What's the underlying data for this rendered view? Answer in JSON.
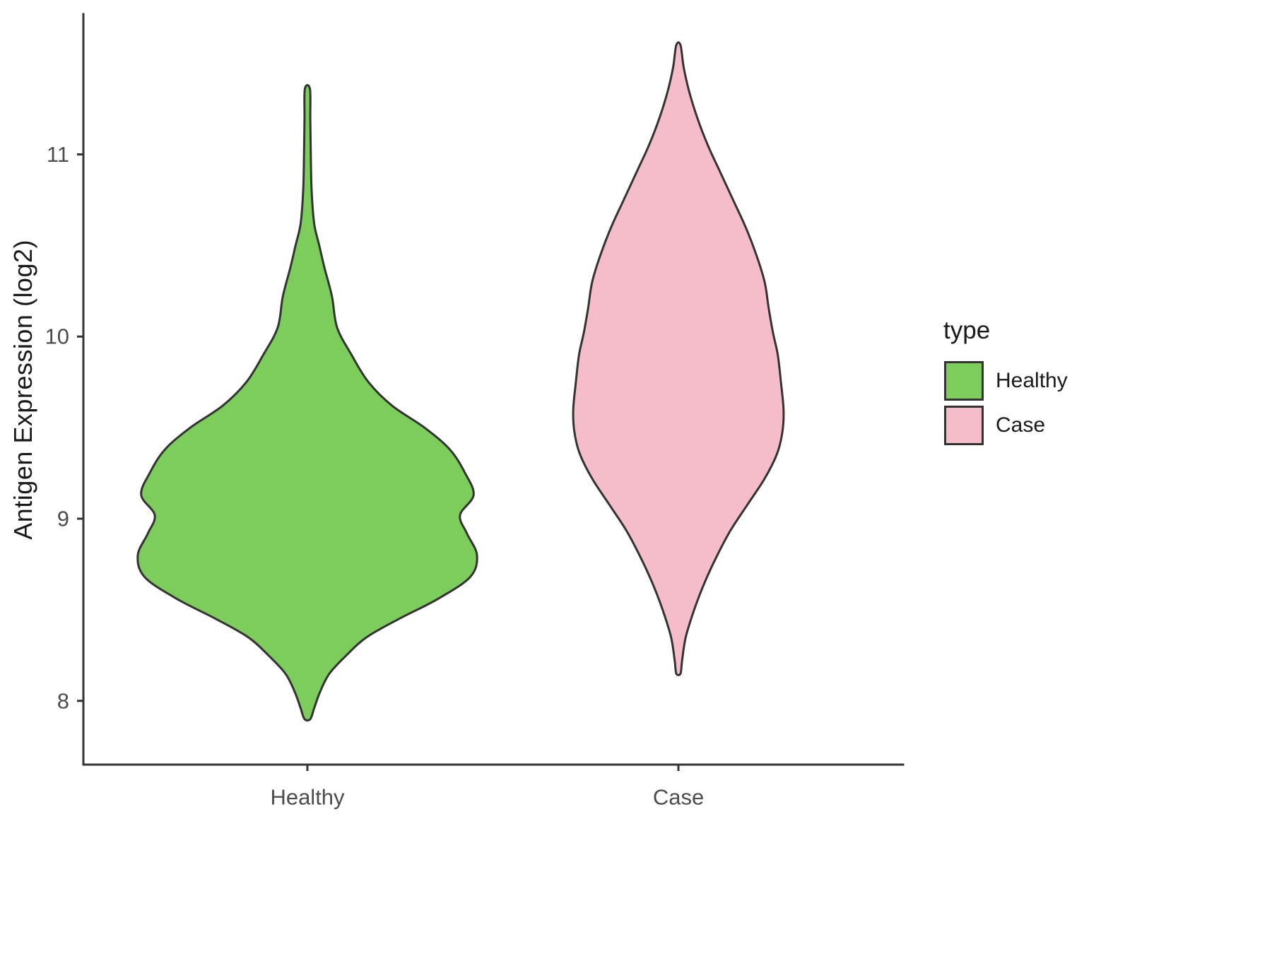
{
  "chart_data": {
    "type": "violin",
    "title": "",
    "xlabel": "",
    "ylabel": "Antigen Expression (log2)",
    "categories": [
      "Healthy",
      "Case"
    ],
    "y_ticks": [
      8,
      9,
      10,
      11
    ],
    "ylim": [
      7.65,
      11.77
    ],
    "grid": "off",
    "legend": {
      "title": "type",
      "position": "right",
      "entries": [
        {
          "label": "Healthy",
          "color": "#7CCD5B"
        },
        {
          "label": "Case",
          "color": "#F5BDCA"
        }
      ]
    },
    "series": [
      {
        "name": "Healthy",
        "fill": "#7CCD5B",
        "outline": "#333333",
        "max_width": 1.0,
        "y_min": 7.9,
        "y_max": 11.36,
        "profile": [
          [
            11.36,
            0.015
          ],
          [
            11.2,
            0.017
          ],
          [
            11.0,
            0.02
          ],
          [
            10.8,
            0.025
          ],
          [
            10.62,
            0.04
          ],
          [
            10.5,
            0.07
          ],
          [
            10.38,
            0.1
          ],
          [
            10.22,
            0.145
          ],
          [
            10.05,
            0.175
          ],
          [
            9.9,
            0.26
          ],
          [
            9.75,
            0.36
          ],
          [
            9.62,
            0.5
          ],
          [
            9.5,
            0.69
          ],
          [
            9.38,
            0.84
          ],
          [
            9.25,
            0.93
          ],
          [
            9.13,
            0.98
          ],
          [
            9.02,
            0.9
          ],
          [
            8.92,
            0.94
          ],
          [
            8.8,
            1.0
          ],
          [
            8.68,
            0.96
          ],
          [
            8.56,
            0.77
          ],
          [
            8.45,
            0.54
          ],
          [
            8.35,
            0.35
          ],
          [
            8.25,
            0.23
          ],
          [
            8.15,
            0.13
          ],
          [
            8.05,
            0.075
          ],
          [
            7.96,
            0.04
          ],
          [
            7.9,
            0.017
          ]
        ]
      },
      {
        "name": "Case",
        "fill": "#F5BDCA",
        "outline": "#333333",
        "max_width": 0.62,
        "y_min": 8.15,
        "y_max": 11.6,
        "profile": [
          [
            11.6,
            0.02
          ],
          [
            11.48,
            0.05
          ],
          [
            11.35,
            0.1
          ],
          [
            11.2,
            0.18
          ],
          [
            11.05,
            0.28
          ],
          [
            10.9,
            0.4
          ],
          [
            10.75,
            0.52
          ],
          [
            10.6,
            0.64
          ],
          [
            10.45,
            0.74
          ],
          [
            10.3,
            0.82
          ],
          [
            10.15,
            0.86
          ],
          [
            10.02,
            0.9
          ],
          [
            9.9,
            0.945
          ],
          [
            9.75,
            0.975
          ],
          [
            9.6,
            1.0
          ],
          [
            9.48,
            0.99
          ],
          [
            9.36,
            0.94
          ],
          [
            9.22,
            0.82
          ],
          [
            9.08,
            0.66
          ],
          [
            8.94,
            0.5
          ],
          [
            8.8,
            0.37
          ],
          [
            8.65,
            0.25
          ],
          [
            8.5,
            0.15
          ],
          [
            8.35,
            0.07
          ],
          [
            8.22,
            0.035
          ],
          [
            8.15,
            0.02
          ]
        ]
      }
    ]
  }
}
